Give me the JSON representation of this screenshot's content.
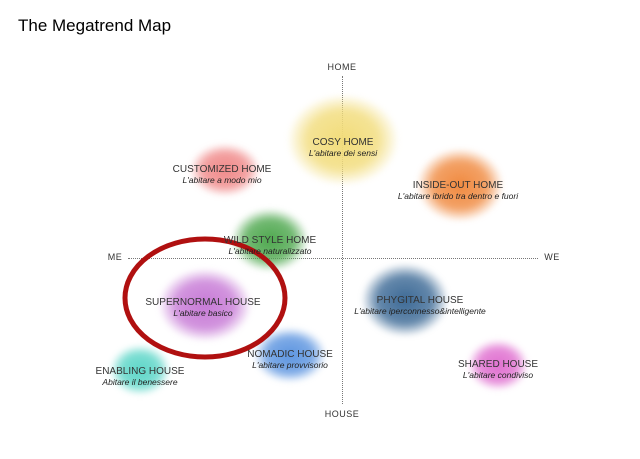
{
  "title": "The Megatrend Map",
  "axes": {
    "top": "HOME",
    "bottom": "HOUSE",
    "left": "ME",
    "right": "WE"
  },
  "items": [
    {
      "name": "COSY HOME",
      "sub": "L'abitare dei sensi",
      "color": "#f2dc7a"
    },
    {
      "name": "CUSTOMIZED HOME",
      "sub": "L'abitare a modo mio",
      "color": "#f08a8a"
    },
    {
      "name": "INSIDE-OUT HOME",
      "sub": "L'abitare ibrido tra dentro e fuori",
      "color": "#f08a40"
    },
    {
      "name": "WILD STYLE HOME",
      "sub": "L'abitare naturalizzato",
      "color": "#4fa84f"
    },
    {
      "name": "SUPERNORMAL HOUSE",
      "sub": "L'abitare basico",
      "color": "#c77ad6"
    },
    {
      "name": "PHYGITAL HOUSE",
      "sub": "L'abitare iperconnesso&intelligente",
      "color": "#3d6a96"
    },
    {
      "name": "NOMADIC HOUSE",
      "sub": "L'abitare provvisorio",
      "color": "#5d95e0"
    },
    {
      "name": "ENABLING HOUSE",
      "sub": "Abitare il benessere",
      "color": "#5dd6c8"
    },
    {
      "name": "SHARED HOUSE",
      "sub": "L'abitare condiviso",
      "color": "#e070d0"
    }
  ],
  "highlight": {
    "target": "SUPERNORMAL HOUSE",
    "color": "#b01010"
  }
}
